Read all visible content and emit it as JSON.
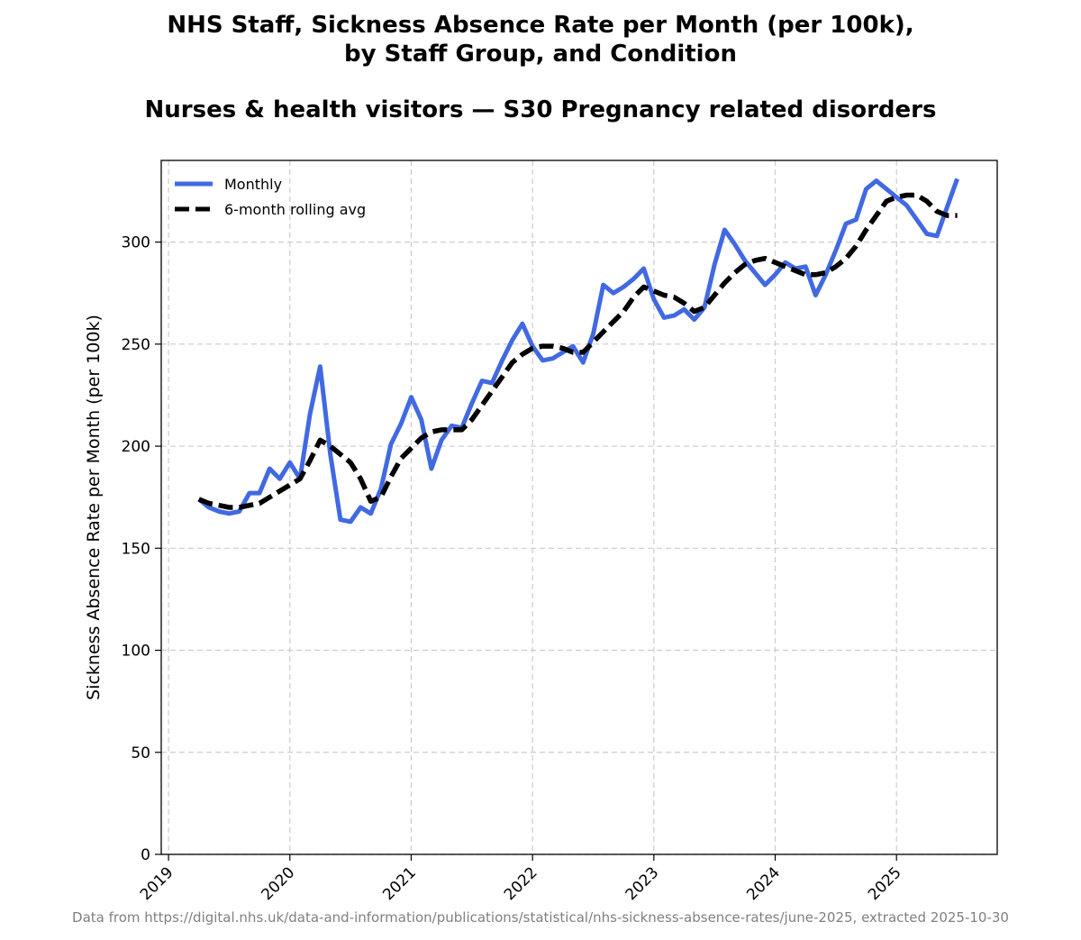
{
  "chart_data": {
    "type": "line",
    "title_line1": "NHS Staff, Sickness Absence Rate per Month (per 100k),",
    "title_line2": "by Staff Group, and Condition",
    "subtitle": "Nurses & health visitors — S30 Pregnancy related disorders",
    "ylabel": "Sickness Absence Rate per Month (per 100k)",
    "xlabel": "",
    "ylim": [
      0,
      340
    ],
    "yticks": [
      0,
      50,
      100,
      150,
      200,
      250,
      300
    ],
    "xlim": [
      2018.94,
      2025.83
    ],
    "xticks": [
      {
        "value": 2019,
        "label": "2019"
      },
      {
        "value": 2020,
        "label": "2020"
      },
      {
        "value": 2021,
        "label": "2021"
      },
      {
        "value": 2022,
        "label": "2022"
      },
      {
        "value": 2023,
        "label": "2023"
      },
      {
        "value": 2024,
        "label": "2024"
      },
      {
        "value": 2025,
        "label": "2025"
      }
    ],
    "grid": true,
    "legend_position": "top-left",
    "start": "2019-04",
    "series": [
      {
        "name": "Monthly",
        "color": "#4169e1",
        "style": "solid",
        "values": [
          174,
          170,
          168,
          167,
          168,
          177,
          177,
          189,
          184,
          192,
          184,
          216,
          239,
          196,
          164,
          163,
          170,
          167,
          179,
          201,
          211,
          224,
          213,
          189,
          203,
          210,
          209,
          221,
          232,
          231,
          242,
          252,
          260,
          249,
          242,
          243,
          246,
          249,
          241,
          255,
          279,
          275,
          278,
          282,
          287,
          272,
          263,
          264,
          267,
          262,
          268,
          289,
          306,
          299,
          291,
          285,
          279,
          284,
          290,
          287,
          288,
          274,
          284,
          296,
          309,
          311,
          326,
          330,
          326,
          322,
          318,
          311,
          304,
          303,
          317,
          331
        ]
      },
      {
        "name": "6-month rolling avg",
        "color": "#000000",
        "style": "dashed",
        "values": [
          174,
          172,
          171,
          170,
          170,
          171,
          172,
          175,
          178,
          181,
          184,
          193,
          203,
          200,
          196,
          192,
          184,
          173,
          175,
          185,
          194,
          199,
          204,
          207,
          208,
          208,
          208,
          213,
          220,
          227,
          234,
          241,
          245,
          248,
          249,
          249,
          248,
          246,
          246,
          251,
          256,
          261,
          266,
          273,
          278,
          276,
          274,
          273,
          270,
          266,
          268,
          274,
          280,
          285,
          289,
          291,
          292,
          290,
          288,
          286,
          284,
          284,
          285,
          288,
          292,
          298,
          306,
          313,
          320,
          322,
          323,
          323,
          320,
          315,
          313,
          313
        ]
      }
    ]
  },
  "footer": "Data from https://digital.nhs.uk/data-and-information/publications/statistical/nhs-sickness-absence-rates/june-2025, extracted 2025-10-30"
}
